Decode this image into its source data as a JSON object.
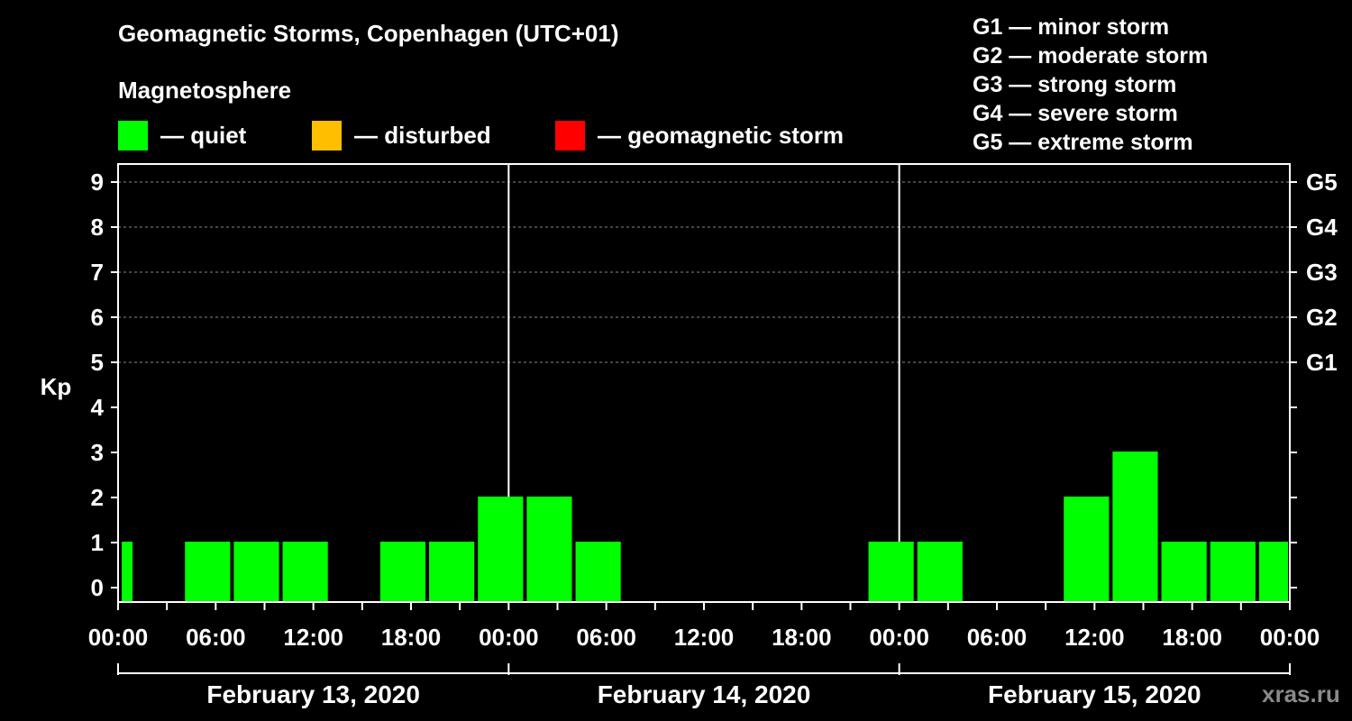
{
  "title": "Geomagnetic Storms, Copenhagen (UTC+01)",
  "magnetosphere_label": "Magnetosphere",
  "legend": [
    {
      "label": "— quiet",
      "color": "#00ff00"
    },
    {
      "label": "— disturbed",
      "color": "#ffbf00"
    },
    {
      "label": "— geomagnetic storm",
      "color": "#ff0000"
    }
  ],
  "storm_levels": [
    "G1 — minor storm",
    "G2 — moderate storm",
    "G3 — strong storm",
    "G4 — severe storm",
    "G5 — extreme storm"
  ],
  "watermark": "xras.ru",
  "chart_data": {
    "type": "bar",
    "title": "Geomagnetic Storms, Copenhagen (UTC+01)",
    "ylabel": "Kp",
    "ylim": [
      0,
      9
    ],
    "y_ticks": [
      "0",
      "1",
      "2",
      "3",
      "4",
      "5",
      "6",
      "7",
      "8",
      "9"
    ],
    "right_axis_labels": [
      {
        "kp": 5,
        "label": "G1"
      },
      {
        "kp": 6,
        "label": "G2"
      },
      {
        "kp": 7,
        "label": "G3"
      },
      {
        "kp": 8,
        "label": "G4"
      },
      {
        "kp": 9,
        "label": "G5"
      }
    ],
    "x_range_hours": [
      0,
      72
    ],
    "x_tick_labels": [
      "00:00",
      "06:00",
      "12:00",
      "18:00",
      "00:00",
      "06:00",
      "12:00",
      "18:00",
      "00:00",
      "06:00",
      "12:00",
      "18:00",
      "00:00"
    ],
    "days": [
      "February 13, 2020",
      "February 14, 2020",
      "February 15, 2020"
    ],
    "grid": "dashed at Kp 5-9",
    "bar_series": [
      {
        "start_hour": 0,
        "end_hour": 1,
        "kp": 1
      },
      {
        "start_hour": 4,
        "end_hour": 7,
        "kp": 1
      },
      {
        "start_hour": 7,
        "end_hour": 10,
        "kp": 1
      },
      {
        "start_hour": 10,
        "end_hour": 13,
        "kp": 1
      },
      {
        "start_hour": 16,
        "end_hour": 19,
        "kp": 1
      },
      {
        "start_hour": 19,
        "end_hour": 22,
        "kp": 1
      },
      {
        "start_hour": 22,
        "end_hour": 25,
        "kp": 2
      },
      {
        "start_hour": 25,
        "end_hour": 28,
        "kp": 2
      },
      {
        "start_hour": 28,
        "end_hour": 31,
        "kp": 1
      },
      {
        "start_hour": 46,
        "end_hour": 49,
        "kp": 1
      },
      {
        "start_hour": 49,
        "end_hour": 52,
        "kp": 1
      },
      {
        "start_hour": 58,
        "end_hour": 61,
        "kp": 2
      },
      {
        "start_hour": 61,
        "end_hour": 64,
        "kp": 3
      },
      {
        "start_hour": 64,
        "end_hour": 67,
        "kp": 1
      },
      {
        "start_hour": 67,
        "end_hour": 70,
        "kp": 1
      },
      {
        "start_hour": 70,
        "end_hour": 72,
        "kp": 1
      }
    ]
  }
}
